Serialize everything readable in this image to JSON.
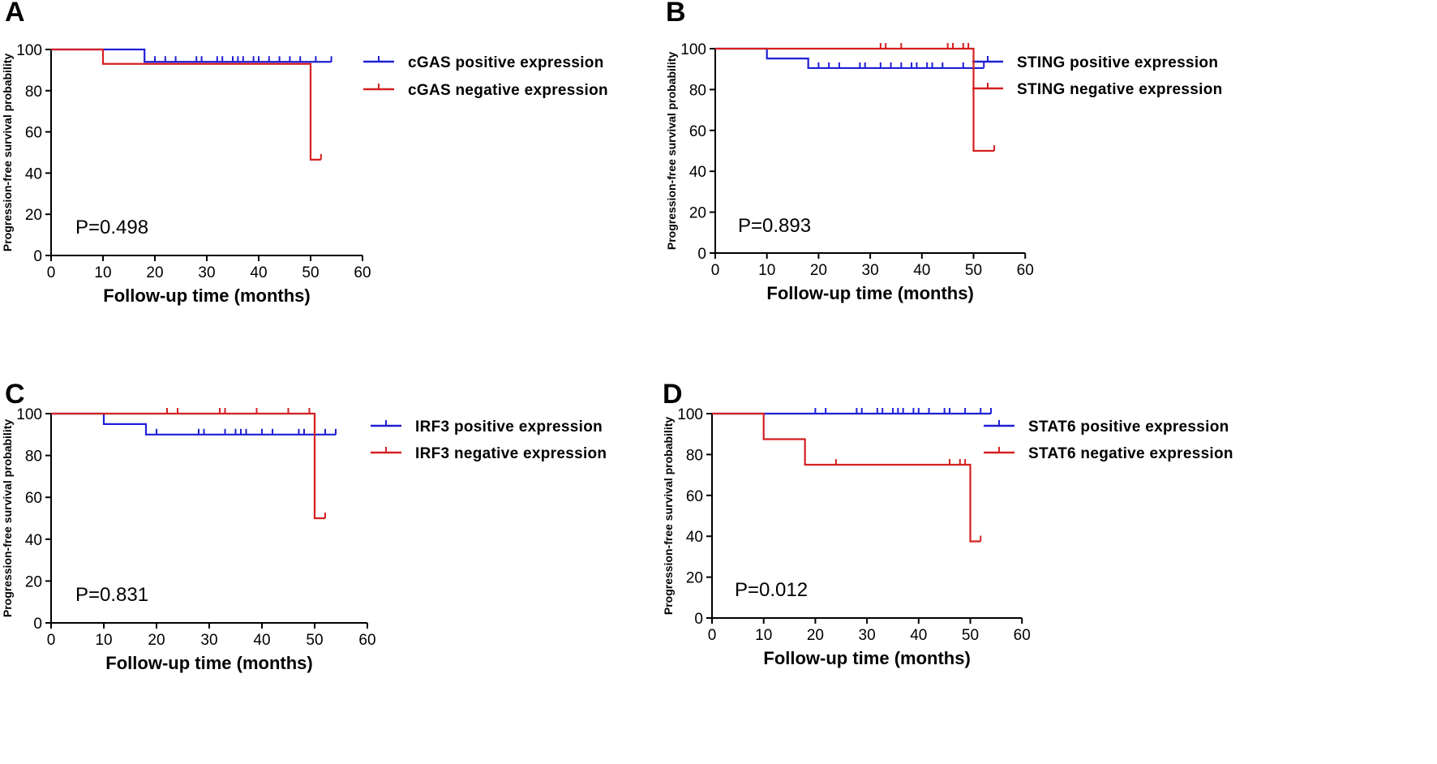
{
  "chart_data": [
    {
      "type": "line",
      "panel_label": "A",
      "xlabel": "Follow-up time (months)",
      "ylabel": "Progression-free survival probability",
      "xlim": [
        0,
        60
      ],
      "ylim": [
        0,
        100
      ],
      "xticks": [
        "0",
        "10",
        "20",
        "30",
        "40",
        "50",
        "60"
      ],
      "yticks": [
        "0",
        "20",
        "40",
        "60",
        "80",
        "100"
      ],
      "p_value": "P=0.498",
      "legend_position": "right",
      "series": [
        {
          "name": "cGAS  positive expression",
          "color": "#1f1fd6",
          "steps": [
            [
              0,
              100
            ],
            [
              18,
              100
            ],
            [
              18,
              94
            ],
            [
              54,
              94
            ]
          ],
          "censored": [
            [
              20,
              94
            ],
            [
              22,
              94
            ],
            [
              24,
              94
            ],
            [
              28,
              94
            ],
            [
              29,
              94
            ],
            [
              32,
              94
            ],
            [
              33,
              94
            ],
            [
              35,
              94
            ],
            [
              36,
              94
            ],
            [
              37,
              94
            ],
            [
              39,
              94
            ],
            [
              40,
              94
            ],
            [
              42,
              94
            ],
            [
              44,
              94
            ],
            [
              46,
              94
            ],
            [
              48,
              94
            ],
            [
              51,
              94
            ],
            [
              54,
              94
            ]
          ]
        },
        {
          "name": "cGAS  negative expression",
          "color": "#d42020",
          "steps": [
            [
              0,
              100
            ],
            [
              10,
              100
            ],
            [
              10,
              93
            ],
            [
              50,
              93
            ],
            [
              50,
              46.5
            ],
            [
              52,
              46.5
            ]
          ],
          "censored": [
            [
              52,
              46.5
            ]
          ]
        }
      ]
    },
    {
      "type": "line",
      "panel_label": "B",
      "xlabel": "Follow-up time (months)",
      "ylabel": "Progression-free survival probability",
      "xlim": [
        0,
        60
      ],
      "ylim": [
        0,
        100
      ],
      "xticks": [
        "0",
        "10",
        "20",
        "30",
        "40",
        "50",
        "60"
      ],
      "yticks": [
        "0",
        "20",
        "40",
        "60",
        "80",
        "100"
      ],
      "p_value": "P=0.893",
      "legend_position": "right",
      "series": [
        {
          "name": "STING positive expression",
          "color": "#1f1fd6",
          "steps": [
            [
              0,
              100
            ],
            [
              10,
              100
            ],
            [
              10,
              95.2
            ],
            [
              18,
              95.2
            ],
            [
              18,
              90.5
            ],
            [
              52,
              90.5
            ]
          ],
          "censored": [
            [
              20,
              90.5
            ],
            [
              22,
              90.5
            ],
            [
              24,
              90.5
            ],
            [
              28,
              90.5
            ],
            [
              29,
              90.5
            ],
            [
              32,
              90.5
            ],
            [
              34,
              90.5
            ],
            [
              36,
              90.5
            ],
            [
              38,
              90.5
            ],
            [
              39,
              90.5
            ],
            [
              41,
              90.5
            ],
            [
              42,
              90.5
            ],
            [
              44,
              90.5
            ],
            [
              48,
              90.5
            ],
            [
              52,
              90.5
            ]
          ]
        },
        {
          "name": "STING negative expression",
          "color": "#d42020",
          "steps": [
            [
              0,
              100
            ],
            [
              50,
              100
            ],
            [
              50,
              50
            ],
            [
              54,
              50
            ]
          ],
          "censored": [
            [
              32,
              100
            ],
            [
              33,
              100
            ],
            [
              36,
              100
            ],
            [
              45,
              100
            ],
            [
              46,
              100
            ],
            [
              48,
              100
            ],
            [
              49,
              100
            ],
            [
              54,
              50
            ]
          ]
        }
      ]
    },
    {
      "type": "line",
      "panel_label": "C",
      "xlabel": "Follow-up time (months)",
      "ylabel": "Progression-free survival probability",
      "xlim": [
        0,
        60
      ],
      "ylim": [
        0,
        100
      ],
      "xticks": [
        "0",
        "10",
        "20",
        "30",
        "40",
        "50",
        "60"
      ],
      "yticks": [
        "0",
        "20",
        "40",
        "60",
        "80",
        "100"
      ],
      "p_value": "P=0.831",
      "legend_position": "right",
      "series": [
        {
          "name": "IRF3 positive expression",
          "color": "#1f1fd6",
          "steps": [
            [
              0,
              100
            ],
            [
              10,
              100
            ],
            [
              10,
              95
            ],
            [
              18,
              95
            ],
            [
              18,
              90
            ],
            [
              54,
              90
            ]
          ],
          "censored": [
            [
              20,
              90
            ],
            [
              28,
              90
            ],
            [
              29,
              90
            ],
            [
              33,
              90
            ],
            [
              35,
              90
            ],
            [
              36,
              90
            ],
            [
              37,
              90
            ],
            [
              40,
              90
            ],
            [
              42,
              90
            ],
            [
              47,
              90
            ],
            [
              48,
              90
            ],
            [
              52,
              90
            ],
            [
              54,
              90
            ]
          ]
        },
        {
          "name": "IRF3 negative expression",
          "color": "#d42020",
          "steps": [
            [
              0,
              100
            ],
            [
              50,
              100
            ],
            [
              50,
              50
            ],
            [
              52,
              50
            ]
          ],
          "censored": [
            [
              22,
              100
            ],
            [
              24,
              100
            ],
            [
              32,
              100
            ],
            [
              33,
              100
            ],
            [
              39,
              100
            ],
            [
              45,
              100
            ],
            [
              49,
              100
            ],
            [
              52,
              50
            ]
          ]
        }
      ]
    },
    {
      "type": "line",
      "panel_label": "D",
      "xlabel": "Follow-up time (months)",
      "ylabel": "Progression-free survival probability",
      "xlim": [
        0,
        60
      ],
      "ylim": [
        0,
        100
      ],
      "xticks": [
        "0",
        "10",
        "20",
        "30",
        "40",
        "50",
        "60"
      ],
      "yticks": [
        "0",
        "20",
        "40",
        "60",
        "80",
        "100"
      ],
      "p_value": "P=0.012",
      "legend_position": "right",
      "series": [
        {
          "name": "STAT6 positive expression",
          "color": "#1f1fd6",
          "steps": [
            [
              0,
              100
            ],
            [
              54,
              100
            ]
          ],
          "censored": [
            [
              20,
              100
            ],
            [
              22,
              100
            ],
            [
              28,
              100
            ],
            [
              29,
              100
            ],
            [
              32,
              100
            ],
            [
              33,
              100
            ],
            [
              35,
              100
            ],
            [
              36,
              100
            ],
            [
              37,
              100
            ],
            [
              39,
              100
            ],
            [
              40,
              100
            ],
            [
              42,
              100
            ],
            [
              45,
              100
            ],
            [
              46,
              100
            ],
            [
              49,
              100
            ],
            [
              52,
              100
            ],
            [
              54,
              100
            ]
          ]
        },
        {
          "name": "STAT6 negative expression",
          "color": "#d42020",
          "steps": [
            [
              0,
              100
            ],
            [
              10,
              100
            ],
            [
              10,
              87.5
            ],
            [
              18,
              87.5
            ],
            [
              18,
              75
            ],
            [
              50,
              75
            ],
            [
              50,
              37.5
            ],
            [
              52,
              37.5
            ]
          ],
          "censored": [
            [
              24,
              75
            ],
            [
              46,
              75
            ],
            [
              48,
              75
            ],
            [
              49,
              75
            ],
            [
              52,
              37.5
            ]
          ]
        }
      ]
    }
  ]
}
